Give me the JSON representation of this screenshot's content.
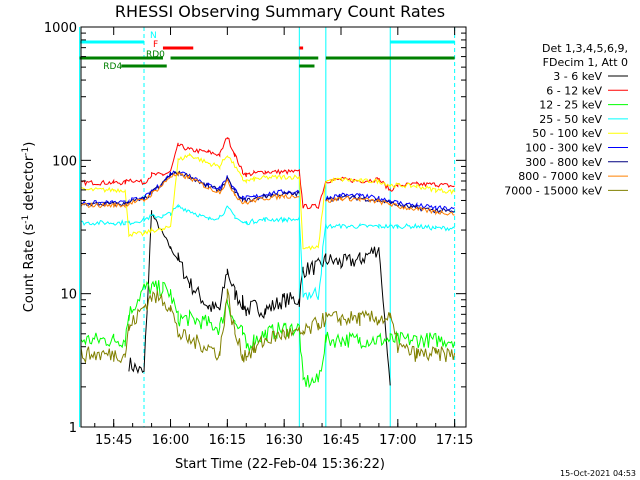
{
  "chart_data": {
    "type": "line",
    "title": "RHESSI Observing Summary Count Rates",
    "xlabel": "Start Time (22-Feb-04 15:36:22)",
    "ylabel": "Count Rate (s⁻¹ detector⁻¹)",
    "ylabel_prefix": "Count Rate (s",
    "ylabel_mid": " detector",
    "ylabel_suffix": ")",
    "ylabel_exp": "-1",
    "y_scale": "log",
    "ylim": [
      1,
      1000
    ],
    "xlim": [
      "15:36:22",
      "17:18:00"
    ],
    "x_ticks": [
      "15:45",
      "16:00",
      "16:15",
      "16:30",
      "16:45",
      "17:00",
      "17:15"
    ],
    "y_ticks": [
      "1",
      "10",
      "100",
      "1000"
    ],
    "legend_header": [
      "Det 1,3,4,5,6,9,",
      "FDecim 1, Att 0"
    ],
    "legend_placement": "right",
    "timestamp": "15-Oct-2021 04:53",
    "x_knots": [
      "15:36",
      "15:45",
      "15:48",
      "15:49",
      "15:53",
      "15:55",
      "15:58",
      "16:00",
      "16:02",
      "16:05",
      "16:10",
      "16:13",
      "16:15",
      "16:17",
      "16:19",
      "16:20",
      "16:22",
      "16:25",
      "16:30",
      "16:34",
      "16:35",
      "16:39",
      "16:41",
      "16:45",
      "16:50",
      "16:55",
      "16:58",
      "17:00",
      "17:05",
      "17:10",
      "17:15"
    ],
    "series": [
      {
        "name": "3 - 6 keV",
        "color": "#000000",
        "values": [
          null,
          null,
          null,
          3,
          2.5,
          40,
          28,
          22,
          18,
          12,
          8,
          7.5,
          15,
          10,
          8.5,
          7.5,
          8,
          7.5,
          9,
          9,
          15,
          16,
          18,
          17,
          18,
          22,
          2,
          null,
          null,
          null,
          null
        ]
      },
      {
        "name": "6 - 12 keV",
        "color": "#ff0000",
        "values": [
          68,
          68,
          68,
          72,
          68,
          78,
          78,
          82,
          130,
          120,
          115,
          110,
          150,
          110,
          82,
          78,
          80,
          82,
          82,
          82,
          45,
          45,
          70,
          72,
          70,
          72,
          60,
          65,
          66,
          66,
          64
        ]
      },
      {
        "name": "12 - 25 keV",
        "color": "#00ff00",
        "values": [
          4.5,
          4.5,
          4.5,
          7,
          11,
          11,
          11,
          10,
          6.5,
          6.5,
          6,
          5.5,
          9,
          6,
          5,
          4,
          4.5,
          5,
          5.5,
          5.5,
          2.2,
          2.2,
          4.5,
          4.5,
          4.5,
          4.5,
          4.5,
          4.5,
          4.5,
          4.5,
          4.5
        ]
      },
      {
        "name": "25 - 50 keV",
        "color": "#00ffff",
        "values": [
          34,
          34,
          34,
          34,
          36,
          38,
          38,
          40,
          45,
          42,
          36,
          38,
          44,
          38,
          34,
          34,
          35,
          36,
          36,
          36,
          10,
          10,
          32,
          32,
          32,
          32,
          32,
          32,
          32,
          31,
          31
        ]
      },
      {
        "name": "50 - 100 keV",
        "color": "#ffff00",
        "values": [
          60,
          60,
          60,
          28,
          28,
          30,
          30,
          32,
          100,
          110,
          95,
          90,
          110,
          90,
          72,
          70,
          72,
          74,
          75,
          75,
          22,
          22,
          70,
          72,
          70,
          70,
          65,
          65,
          64,
          60,
          58
        ]
      },
      {
        "name": "100 - 300 keV",
        "color": "#0000ff",
        "values": [
          48,
          48,
          48,
          50,
          52,
          58,
          68,
          80,
          82,
          78,
          65,
          62,
          75,
          60,
          52,
          52,
          53,
          56,
          58,
          58,
          null,
          null,
          52,
          55,
          54,
          52,
          50,
          48,
          46,
          44,
          43
        ]
      },
      {
        "name": "300 - 800 keV",
        "color": "#000080",
        "values": [
          47,
          47,
          47,
          49,
          51,
          57,
          67,
          78,
          80,
          76,
          63,
          60,
          72,
          58,
          50,
          50,
          51,
          54,
          56,
          56,
          null,
          null,
          50,
          53,
          52,
          50,
          48,
          46,
          44,
          42,
          41
        ]
      },
      {
        "name": "800 - 7000 keV",
        "color": "#ff8000",
        "values": [
          46,
          46,
          46,
          48,
          50,
          56,
          66,
          76,
          78,
          74,
          62,
          58,
          70,
          56,
          48,
          48,
          50,
          52,
          54,
          54,
          null,
          null,
          49,
          52,
          51,
          49,
          47,
          45,
          43,
          41,
          40
        ]
      },
      {
        "name": "7000 - 15000 keV",
        "color": "#808000",
        "values": [
          3.5,
          3.5,
          3.5,
          5.5,
          8,
          9.5,
          9,
          8,
          5,
          4.5,
          4,
          3.5,
          10,
          5,
          3.5,
          3.5,
          3.8,
          4.5,
          5,
          5,
          5,
          6,
          6.5,
          6.5,
          6.5,
          6.5,
          6.5,
          4,
          3.5,
          3.5,
          3.5
        ]
      }
    ],
    "flags": [
      {
        "label": "N",
        "color": "#00ffff",
        "intervals": [
          [
            "15:36",
            "15:53"
          ],
          [
            "16:58",
            "17:15"
          ]
        ]
      },
      {
        "label": "F",
        "color": "#ff0000",
        "intervals": [
          [
            "15:58",
            "16:06"
          ],
          [
            "16:34",
            "16:35"
          ]
        ]
      },
      {
        "label": "RD0",
        "color": "#008000",
        "intervals": [
          [
            "15:36",
            "15:58"
          ],
          [
            "16:00",
            "16:34"
          ],
          [
            "16:34",
            "16:39"
          ],
          [
            "16:41",
            "17:15"
          ]
        ]
      },
      {
        "label": "RD4",
        "color": "#008000",
        "intervals": [
          [
            "15:47",
            "15:59"
          ],
          [
            "16:34",
            "16:38"
          ]
        ]
      }
    ],
    "intervals_vlines": {
      "solid": [
        "15:36",
        "16:34",
        "16:41",
        "16:58"
      ],
      "dashed": [
        "15:53",
        "17:15"
      ]
    }
  }
}
